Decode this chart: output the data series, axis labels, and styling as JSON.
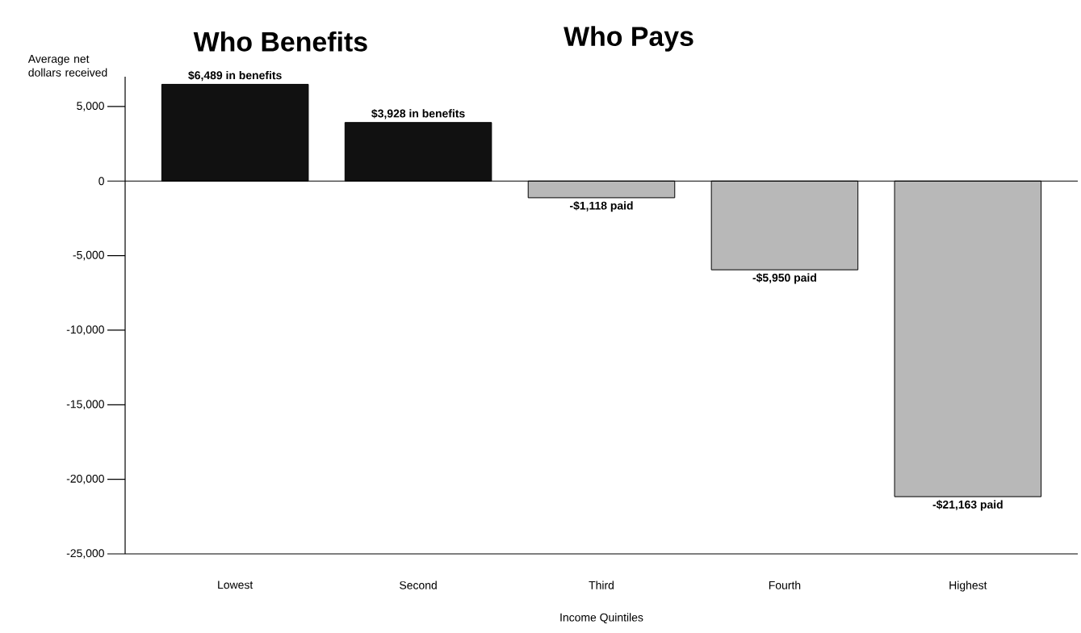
{
  "chart_data": {
    "type": "bar",
    "annotations": [
      "Who Benefits",
      "Who Pays"
    ],
    "ylabel": "Average net dollars received",
    "xlabel": "Income Quintiles",
    "categories": [
      "Lowest",
      "Second",
      "Third",
      "Fourth",
      "Highest"
    ],
    "values": [
      6489,
      3928,
      -1118,
      -5950,
      -21163
    ],
    "colors": [
      "#111111",
      "#111111",
      "#b8b8b8",
      "#b8b8b8",
      "#b8b8b8"
    ],
    "value_labels": [
      "$6,489 in benefits",
      "$3,928 in benefits",
      "-$1,118 paid",
      "-$5,950 paid",
      "-$21,163 paid"
    ],
    "ylim": [
      -25000,
      7000
    ],
    "yticks": [
      {
        "value": 5000,
        "label": "5,000"
      },
      0,
      {
        "value": -5000,
        "label": "-5,000"
      },
      {
        "value": -10000,
        "label": "-10,000"
      },
      {
        "value": -15000,
        "label": "-15,000"
      },
      {
        "value": -20000,
        "label": "-20,000"
      },
      {
        "value": -25000,
        "label": "-25,000"
      }
    ],
    "ref_lines": [
      {
        "axis": "y",
        "value": 0,
        "color": "#000000"
      }
    ]
  }
}
